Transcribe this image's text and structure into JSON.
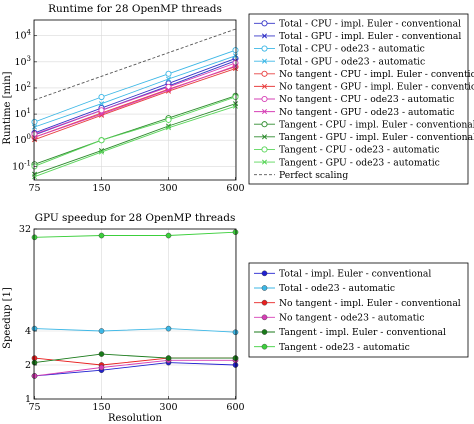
{
  "chart_data": [
    {
      "type": "line",
      "title": "Runtime for 28 OpenMP threads",
      "xlabel": "",
      "ylabel": "Runtime [min]",
      "x": [
        75,
        150,
        300,
        600
      ],
      "x_ticks": [
        "75",
        "150",
        "300",
        "600"
      ],
      "x_scale": "log",
      "y_scale": "log",
      "ylim": [
        0.03,
        40000
      ],
      "y_ticks": [
        "10^{-1}",
        "10^{0}",
        "10^{1}",
        "10^{2}",
        "10^{3}",
        "10^{4}"
      ],
      "y_tick_values": [
        0.1,
        1,
        10,
        100,
        1000,
        10000
      ],
      "legend_position": "right",
      "grid": true,
      "series": [
        {
          "name": "Total - CPU - impl. Euler - conventional",
          "color": "#3535c8",
          "marker": "circle-open",
          "style": "solid",
          "values": [
            1.9,
            17,
            150,
            1350
          ]
        },
        {
          "name": "Total - GPU - impl. Euler - conventional",
          "color": "#3535c8",
          "marker": "x",
          "style": "solid",
          "values": [
            1.6,
            14,
            120,
            1100
          ]
        },
        {
          "name": "Total - CPU - ode23 - automatic",
          "color": "#3cb7e6",
          "marker": "circle-open",
          "style": "solid",
          "values": [
            5,
            45,
            350,
            2800
          ]
        },
        {
          "name": "Total - GPU - ode23 - automatic",
          "color": "#3cb7e6",
          "marker": "x",
          "style": "solid",
          "values": [
            3.2,
            25,
            220,
            1700
          ]
        },
        {
          "name": "No tangent - CPU - impl. Euler - conventional",
          "color": "#e84040",
          "marker": "circle-open",
          "style": "solid",
          "values": [
            1.3,
            11,
            90,
            650
          ]
        },
        {
          "name": "No tangent - GPU - impl. Euler - conventional",
          "color": "#e84040",
          "marker": "x",
          "style": "solid",
          "values": [
            1.05,
            9,
            75,
            550
          ]
        },
        {
          "name": "No tangent - CPU - ode23 - automatic",
          "color": "#d63fb5",
          "marker": "circle-open",
          "style": "solid",
          "values": [
            1.7,
            14,
            110,
            900
          ]
        },
        {
          "name": "No tangent - GPU - ode23 - automatic",
          "color": "#d63fb5",
          "marker": "x",
          "style": "solid",
          "values": [
            1.3,
            10,
            85,
            700
          ]
        },
        {
          "name": "Tangent - CPU - impl. Euler - conventional",
          "color": "#2e8b2e",
          "marker": "circle-open",
          "style": "solid",
          "values": [
            0.12,
            1.0,
            7,
            50
          ]
        },
        {
          "name": "Tangent - GPU - impl. Euler - conventional",
          "color": "#2e8b2e",
          "marker": "x",
          "style": "solid",
          "values": [
            0.05,
            0.4,
            3.5,
            25
          ]
        },
        {
          "name": "Tangent - CPU - ode23 - automatic",
          "color": "#5ad65a",
          "marker": "circle-open",
          "style": "solid",
          "values": [
            0.1,
            1.0,
            6,
            45
          ]
        },
        {
          "name": "Tangent - GPU - ode23 - automatic",
          "color": "#5ad65a",
          "marker": "x",
          "style": "solid",
          "values": [
            0.04,
            0.35,
            3.0,
            20
          ]
        },
        {
          "name": "Perfect scaling",
          "color": "#555555",
          "marker": "none",
          "style": "dashed",
          "values": [
            35,
            280,
            2240,
            17920
          ]
        }
      ]
    },
    {
      "type": "line",
      "title": "GPU speedup for 28 OpenMP threads",
      "xlabel": "Resolution",
      "ylabel": "Speedup [1]",
      "x": [
        75,
        150,
        300,
        600
      ],
      "x_ticks": [
        "75",
        "150",
        "300",
        "600"
      ],
      "x_scale": "log",
      "y_scale": "log2",
      "ylim": [
        1,
        32
      ],
      "y_ticks": [
        "1",
        "2",
        "4",
        "32"
      ],
      "y_tick_values": [
        1,
        2,
        4,
        32
      ],
      "legend_position": "right",
      "grid": true,
      "series": [
        {
          "name": "Total - impl. Euler - conventional",
          "color": "#2020d0",
          "marker": "circle-filled",
          "style": "solid",
          "values": [
            1.6,
            1.8,
            2.1,
            2.0
          ]
        },
        {
          "name": "Total - ode23 - automatic",
          "color": "#3cb7e6",
          "marker": "circle-filled",
          "style": "solid",
          "values": [
            4.2,
            4.0,
            4.2,
            3.9
          ]
        },
        {
          "name": "No tangent - impl. Euler - conventional",
          "color": "#e82020",
          "marker": "circle-filled",
          "style": "solid",
          "values": [
            2.3,
            2.0,
            2.3,
            2.3
          ]
        },
        {
          "name": "No tangent - ode23 - automatic",
          "color": "#d63fb5",
          "marker": "circle-filled",
          "style": "solid",
          "values": [
            1.6,
            1.9,
            2.2,
            2.2
          ]
        },
        {
          "name": "Tangent - impl. Euler - conventional",
          "color": "#1a7a1a",
          "marker": "circle-filled",
          "style": "solid",
          "values": [
            2.1,
            2.5,
            2.3,
            2.3
          ]
        },
        {
          "name": "Tangent - ode23 - automatic",
          "color": "#3ccf3c",
          "marker": "circle-filled",
          "style": "solid",
          "values": [
            27,
            28,
            28,
            30
          ]
        }
      ]
    }
  ]
}
